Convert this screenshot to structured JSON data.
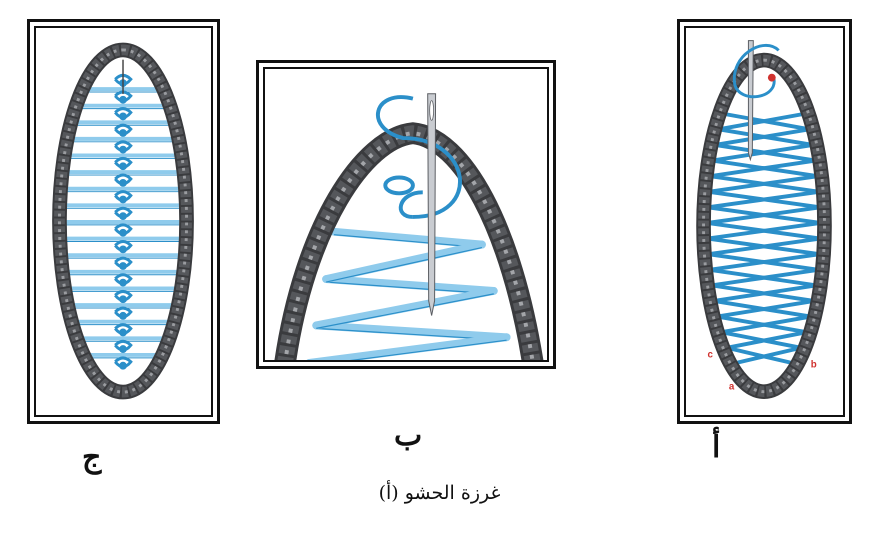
{
  "figures": [
    {
      "label": "ج"
    },
    {
      "label": "ب"
    },
    {
      "label": "أ",
      "stitch_letters": [
        "c",
        "b",
        "a"
      ]
    }
  ],
  "caption": "غرزة الحشو (أ)",
  "colors": {
    "thread": "#2b8fc9",
    "thread_light": "#8fcbec",
    "border_cord": "#55575b",
    "frame": "#111111",
    "marker": "#d0322f"
  },
  "icons": [
    "needle-icon",
    "thread-loop-icon",
    "chain-border-icon"
  ]
}
